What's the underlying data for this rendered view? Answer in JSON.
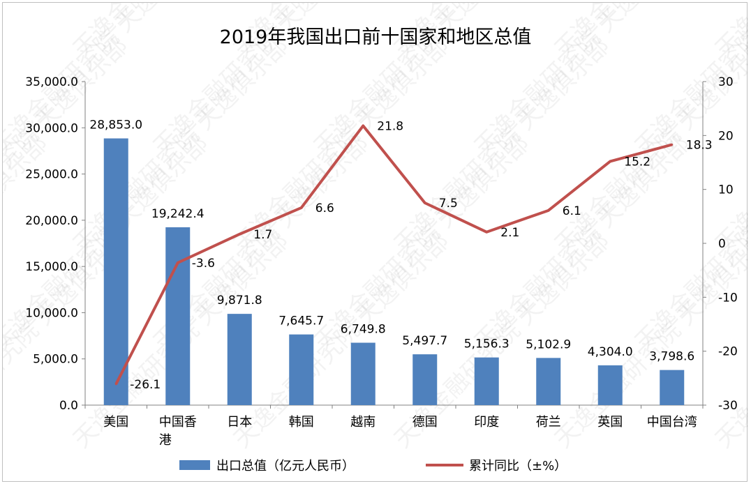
{
  "chart_data": {
    "type": "bar+line",
    "title": "2019年我国出口前十国家和地区总值",
    "categories": [
      "美国",
      "中国香港",
      "日本",
      "韩国",
      "越南",
      "德国",
      "印度",
      "荷兰",
      "英国",
      "中国台湾"
    ],
    "series": [
      {
        "name": "出口总值（亿元人民币）",
        "type": "bar",
        "axis": "left",
        "color": "#4f81bd",
        "values": [
          28853.0,
          19242.4,
          9871.8,
          7645.7,
          6749.8,
          5497.7,
          5156.3,
          5102.9,
          4304.0,
          3798.6
        ],
        "labels": [
          "28,853.0",
          "19,242.4",
          "9,871.8",
          "7,645.7",
          "6,749.8",
          "5,497.7",
          "5,156.3",
          "5,102.9",
          "4,304.0",
          "3,798.6"
        ]
      },
      {
        "name": "累计同比（±%）",
        "type": "line",
        "axis": "right",
        "color": "#c0504d",
        "values": [
          -26.1,
          -3.6,
          1.7,
          6.6,
          21.8,
          7.5,
          2.1,
          6.1,
          15.2,
          18.3
        ],
        "labels": [
          "-26.1",
          "-3.6",
          "1.7",
          "6.6",
          "21.8",
          "7.5",
          "2.1",
          "6.1",
          "15.2",
          "18.3"
        ]
      }
    ],
    "y_left": {
      "range": [
        0,
        35000
      ],
      "ticks": [
        0,
        5000,
        10000,
        15000,
        20000,
        25000,
        30000,
        35000
      ],
      "tick_labels": [
        "0.0",
        "5,000.0",
        "10,000.0",
        "15,000.0",
        "20,000.0",
        "25,000.0",
        "30,000.0",
        "35,000.0"
      ]
    },
    "y_right": {
      "range": [
        -30,
        30
      ],
      "ticks": [
        -30,
        -20,
        -10,
        0,
        10,
        20,
        30
      ],
      "tick_labels": [
        "-30",
        "-20",
        "-10",
        "0",
        "10",
        "20",
        "30"
      ]
    },
    "grid": false,
    "legend": "bottom",
    "watermark": "天逸金融研究院 天逸俱乐部"
  }
}
